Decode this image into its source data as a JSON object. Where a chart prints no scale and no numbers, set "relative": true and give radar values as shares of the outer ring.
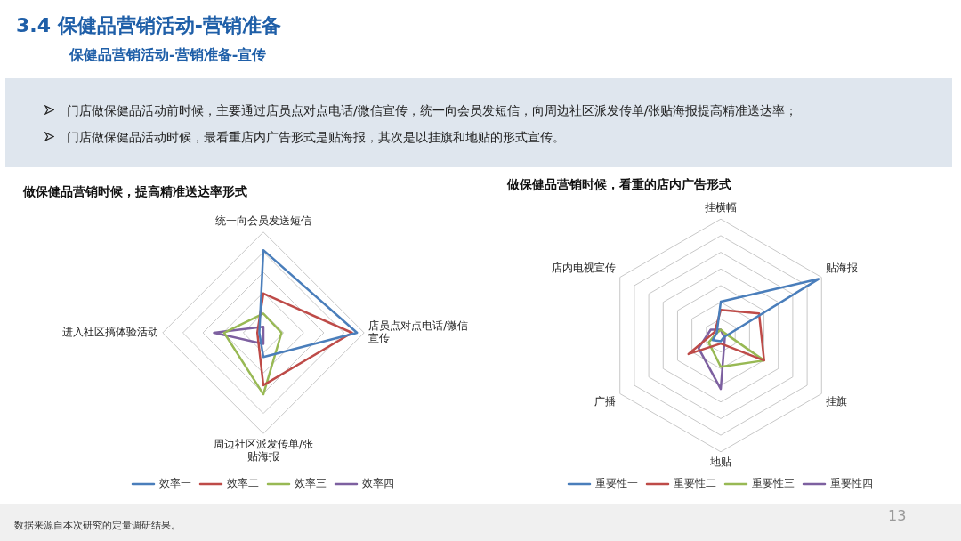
{
  "chart_data": [
    {
      "type": "other",
      "title": "3.4 保健品营销活动-营销准备",
      "subtitle": "保健品营销活动-营销准备-宣传",
      "annotations": [
        "门店做保健品活动前时候，主要通过店员点对点电话/微信宣传，统一向会员发短信，向周边社区派发传单/张贴海报提高精准送达率；",
        "门店做保健品活动时候，最看重店内广告形式是贴海报，其次是以挂旗和地贴的形式宣传。",
        "数据来源自本次研究的定量调研结果。",
        "13"
      ]
    },
    {
      "type": "radar",
      "title": "做保健品营销时候，提高精准送达率形式",
      "relative": true,
      "grid": true,
      "legend": "bottom",
      "marker": "none",
      "categories": [
        "统一向会员发送短信",
        "店员点对点电话/微信宣传",
        "周边社区派发传单/张贴海报",
        "进入社区搞体验活动"
      ],
      "series": [
        {
          "name": "效率一",
          "color": "#4a7ebb",
          "values": [
            0.82,
            0.93,
            0.24,
            0.04
          ]
        },
        {
          "name": "效率二",
          "color": "#be4b48",
          "values": [
            0.39,
            0.88,
            0.52,
            0.06
          ]
        },
        {
          "name": "效率三",
          "color": "#98b954",
          "values": [
            0.19,
            0.18,
            0.61,
            0.39
          ]
        },
        {
          "name": "效率四",
          "color": "#7d60a0",
          "values": [
            0.06,
            0.0,
            0.11,
            0.49
          ]
        }
      ]
    },
    {
      "type": "radar",
      "title": "做保健品营销时候，看重的店内广告形式",
      "relative": true,
      "grid": true,
      "legend": "bottom",
      "marker": "none",
      "categories": [
        "挂横幅",
        "贴海报",
        "挂旗",
        "地贴",
        "广播",
        "店内电视宣传"
      ],
      "series": [
        {
          "name": "重要性一",
          "color": "#4a7ebb",
          "values": [
            0.29,
            0.97,
            0.03,
            0.05,
            0.08,
            0.04
          ]
        },
        {
          "name": "重要性二",
          "color": "#be4b48",
          "values": [
            0.22,
            0.38,
            0.43,
            0.07,
            0.32,
            0.06
          ]
        },
        {
          "name": "重要性三",
          "color": "#98b954",
          "values": [
            0.05,
            0.04,
            0.43,
            0.27,
            0.12,
            0.04
          ]
        },
        {
          "name": "重要性四",
          "color": "#7d60a0",
          "values": [
            0.05,
            0.02,
            0.04,
            0.46,
            0.22,
            0.1
          ]
        }
      ]
    }
  ]
}
